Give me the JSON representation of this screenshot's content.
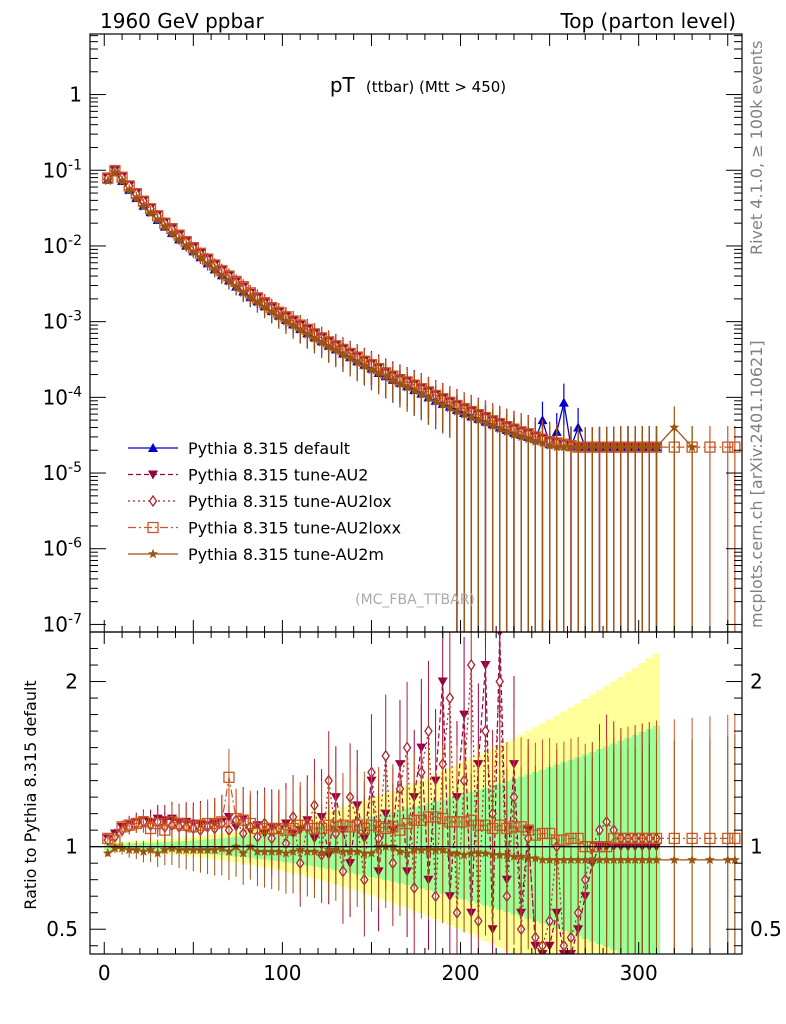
{
  "header": {
    "left": "1960 GeV ppbar",
    "right": "Top (parton level)"
  },
  "side_labels": {
    "rivet": "Rivet 4.1.0, ≥ 100k events",
    "mcplots": "mcplots.cern.ch [arXiv:2401.10621]"
  },
  "chart_data": {
    "type": "line",
    "title_main": "pT",
    "title_sub": "(ttbar) (Mtt > 450)",
    "watermark": "(MC_FBA_TTBAR)",
    "xlabel": "",
    "ylabel_ratio": "Ratio to Pythia 8.315 default",
    "xlim": [
      -8,
      358
    ],
    "ylim_main_log10": [
      -7.1,
      0.8
    ],
    "ylim_ratio": [
      0.35,
      2.3
    ],
    "x_ticks": [
      "0",
      "100",
      "200",
      "300"
    ],
    "y_ticks_main": [
      "1",
      "10^-1",
      "10^-2",
      "10^-3",
      "10^-4",
      "10^-5",
      "10^-6",
      "10^-7"
    ],
    "y_ticks_ratio": [
      "0.5",
      "1",
      "2"
    ],
    "x": [
      2,
      6,
      10,
      14,
      18,
      22,
      26,
      30,
      34,
      38,
      42,
      46,
      50,
      54,
      58,
      62,
      66,
      70,
      74,
      78,
      82,
      86,
      90,
      94,
      98,
      102,
      106,
      110,
      114,
      118,
      122,
      126,
      130,
      134,
      138,
      142,
      146,
      150,
      154,
      158,
      162,
      166,
      170,
      174,
      178,
      182,
      186,
      190,
      194,
      198,
      202,
      206,
      210,
      214,
      218,
      222,
      226,
      230,
      234,
      238,
      242,
      246,
      250,
      254,
      258,
      262,
      266,
      270,
      274,
      278,
      282,
      286,
      290,
      294,
      298,
      302,
      306,
      310,
      320,
      330,
      340,
      350,
      354
    ],
    "series": [
      {
        "name": "Pythia 8.315 default",
        "color": "#0000cc",
        "dash": "",
        "marker": "triangle-up",
        "values": [
          0.075,
          0.095,
          0.072,
          0.055,
          0.043,
          0.034,
          0.028,
          0.022,
          0.018,
          0.0148,
          0.0122,
          0.0101,
          0.0085,
          0.0071,
          0.0059,
          0.0049,
          0.0041,
          0.0035,
          0.0029,
          0.0025,
          0.0021,
          0.00185,
          0.0016,
          0.00138,
          0.0012,
          0.00105,
          0.00092,
          0.0008,
          0.0007,
          0.00062,
          0.00055,
          0.00048,
          0.00043,
          0.00038,
          0.00034,
          0.0003,
          0.00027,
          0.00024,
          0.00021,
          0.00019,
          0.00017,
          0.000155,
          0.00014,
          0.000125,
          0.000112,
          0.0001,
          9e-05,
          8.2e-05,
          7.5e-05,
          6.8e-05,
          6.2e-05,
          5.6e-05,
          5.2e-05,
          4.8e-05,
          4.4e-05,
          4e-05,
          3.7e-05,
          3.4e-05,
          3.2e-05,
          3e-05,
          2.8e-05,
          5e-05,
          2.4e-05,
          3.5e-05,
          8.5e-05,
          2.2e-05,
          4e-05,
          2.2e-05,
          2.2e-05,
          2.2e-05,
          2.2e-05,
          2.2e-05,
          2.2e-05,
          2.2e-05,
          2.2e-05,
          2.2e-05,
          2.2e-05,
          2.2e-05,
          null,
          null,
          null,
          null,
          null
        ]
      },
      {
        "name": "Pythia 8.315 tune-AU2",
        "color": "#990044",
        "dash": "5,3",
        "marker": "triangle-down",
        "values": [
          0.08,
          0.1,
          0.082,
          0.063,
          0.05,
          0.04,
          0.032,
          0.026,
          0.021,
          0.0172,
          0.0141,
          0.0116,
          0.0097,
          0.0081,
          0.0068,
          0.0057,
          0.0048,
          0.0041,
          0.0034,
          0.0029,
          0.0024,
          0.0021,
          0.0018,
          0.00155,
          0.00135,
          0.00118,
          0.00104,
          0.00091,
          0.0008,
          0.0007,
          0.00062,
          0.00055,
          0.00049,
          0.00044,
          0.00039,
          0.00035,
          0.00031,
          0.00028,
          0.00025,
          0.00022,
          0.0002,
          0.00018,
          0.000165,
          0.00015,
          0.000135,
          0.00012,
          0.000108,
          9.8e-05,
          8.8e-05,
          8e-05,
          7.2e-05,
          6.6e-05,
          6e-05,
          5.5e-05,
          5e-05,
          4.6e-05,
          4.2e-05,
          3.9e-05,
          3.6e-05,
          3.4e-05,
          3.1e-05,
          2.9e-05,
          2.7e-05,
          2.6e-05,
          2.4e-05,
          2.3e-05,
          2.2e-05,
          2.2e-05,
          2.2e-05,
          2.2e-05,
          2.2e-05,
          2.2e-05,
          2.2e-05,
          2.2e-05,
          2.2e-05,
          2.2e-05,
          2.2e-05,
          2.2e-05,
          null,
          null,
          null,
          null,
          null
        ]
      },
      {
        "name": "Pythia 8.315 tune-AU2lox",
        "color": "#aa2233",
        "dash": "2,3",
        "marker": "diamond-open",
        "values": [
          0.078,
          0.098,
          0.08,
          0.062,
          0.049,
          0.039,
          0.031,
          0.025,
          0.02,
          0.0167,
          0.0137,
          0.0113,
          0.0094,
          0.0079,
          0.0066,
          0.0056,
          0.0047,
          0.004,
          0.0033,
          0.0028,
          0.0024,
          0.00205,
          0.00176,
          0.00152,
          0.00132,
          0.00115,
          0.00101,
          0.00089,
          0.00078,
          0.00069,
          0.00061,
          0.00054,
          0.00048,
          0.00043,
          0.00038,
          0.00034,
          0.0003,
          0.00027,
          0.00024,
          0.00021,
          0.00019,
          0.00017,
          0.00016,
          0.000145,
          0.00013,
          0.000118,
          0.000106,
          9.6e-05,
          8.6e-05,
          7.8e-05,
          7.1e-05,
          6.5e-05,
          5.9e-05,
          5.4e-05,
          4.9e-05,
          4.5e-05,
          4.1e-05,
          3.8e-05,
          3.5e-05,
          3.3e-05,
          3e-05,
          2.8e-05,
          2.6e-05,
          2.5e-05,
          2.4e-05,
          2.3e-05,
          2.2e-05,
          2.2e-05,
          2.2e-05,
          2.2e-05,
          2.2e-05,
          2.2e-05,
          2.2e-05,
          2.2e-05,
          2.2e-05,
          2.2e-05,
          2.2e-05,
          2.2e-05,
          null,
          null,
          null,
          null,
          null
        ]
      },
      {
        "name": "Pythia 8.315 tune-AU2loxx",
        "color": "#cc5522",
        "dash": "8,3,2,3",
        "marker": "square-open",
        "values": [
          0.079,
          0.099,
          0.081,
          0.062,
          0.049,
          0.039,
          0.031,
          0.025,
          0.02,
          0.0169,
          0.0139,
          0.0114,
          0.0095,
          0.008,
          0.0067,
          0.0056,
          0.0047,
          0.004,
          0.0034,
          0.0029,
          0.0024,
          0.00206,
          0.00178,
          0.00153,
          0.00133,
          0.00116,
          0.00102,
          0.0009,
          0.00079,
          0.00069,
          0.00061,
          0.00054,
          0.00048,
          0.00043,
          0.00038,
          0.00034,
          0.0003,
          0.00027,
          0.00024,
          0.00021,
          0.00019,
          0.00017,
          0.00016,
          0.000145,
          0.00013,
          0.000118,
          0.000106,
          9.6e-05,
          8.6e-05,
          7.8e-05,
          7.1e-05,
          6.5e-05,
          5.9e-05,
          5.4e-05,
          4.9e-05,
          4.5e-05,
          4.1e-05,
          3.8e-05,
          3.5e-05,
          3.3e-05,
          3e-05,
          2.8e-05,
          2.6e-05,
          2.5e-05,
          2.4e-05,
          2.3e-05,
          2.2e-05,
          2.2e-05,
          2.2e-05,
          2.2e-05,
          2.2e-05,
          2.2e-05,
          2.2e-05,
          2.2e-05,
          2.2e-05,
          2.2e-05,
          2.2e-05,
          2.2e-05,
          2.2e-05,
          2.2e-05,
          2.2e-05,
          2.2e-05,
          2.2e-05
        ]
      },
      {
        "name": "Pythia 8.315 tune-AU2m",
        "color": "#995511",
        "dash": "",
        "marker": "star",
        "values": [
          0.072,
          0.094,
          0.071,
          0.054,
          0.042,
          0.033,
          0.027,
          0.022,
          0.018,
          0.0146,
          0.012,
          0.0099,
          0.0083,
          0.007,
          0.0058,
          0.0048,
          0.004,
          0.0034,
          0.0029,
          0.0024,
          0.0021,
          0.0018,
          0.00155,
          0.00134,
          0.00116,
          0.00101,
          0.00089,
          0.00078,
          0.00068,
          0.0006,
          0.00053,
          0.00047,
          0.00042,
          0.00037,
          0.00033,
          0.00029,
          0.00026,
          0.00023,
          0.00021,
          0.00019,
          0.00017,
          0.00015,
          0.000135,
          0.000122,
          0.00011,
          9.8e-05,
          8.8e-05,
          8e-05,
          7.2e-05,
          6.5e-05,
          5.9e-05,
          5.4e-05,
          5e-05,
          4.6e-05,
          4.2e-05,
          3.8e-05,
          3.5e-05,
          3.2e-05,
          3e-05,
          2.8e-05,
          2.6e-05,
          2.5e-05,
          2.3e-05,
          2.2e-05,
          2.2e-05,
          2.2e-05,
          2.2e-05,
          2.2e-05,
          2.2e-05,
          2.2e-05,
          2.2e-05,
          2.2e-05,
          2.2e-05,
          2.2e-05,
          2.2e-05,
          2.2e-05,
          2.2e-05,
          2.2e-05,
          4e-05,
          2.2e-05,
          null,
          null,
          null
        ]
      }
    ],
    "ratio_series": [
      {
        "name": "Pythia 8.315 default",
        "values": [
          1.0,
          1.0,
          1.0,
          1.0,
          1.0,
          1.0,
          1.0,
          1.0,
          1.0,
          1.0,
          1.0,
          1.0,
          1.0,
          1.0,
          1.0,
          1.0,
          1.0,
          1.0,
          1.0,
          1.0,
          1.0,
          1.0,
          1.0,
          1.0,
          1.0,
          1.0,
          1.0,
          1.0,
          1.0,
          1.0,
          1.0,
          1.0,
          1.0,
          1.0,
          1.0,
          1.0,
          1.0,
          1.0,
          1.0,
          1.0,
          1.0,
          1.0,
          1.0,
          1.0,
          1.0,
          1.0,
          1.0,
          1.0,
          1.0,
          1.0,
          1.0,
          1.0,
          1.0,
          1.0,
          1.0,
          1.0,
          1.0,
          1.0,
          1.0,
          1.0,
          1.0,
          1.0,
          1.0,
          1.0,
          1.0,
          1.0,
          1.0,
          1.0,
          1.0,
          1.0,
          1.0,
          1.0,
          1.0,
          1.0,
          1.0,
          1.0,
          1.0,
          1.0,
          null,
          null,
          null,
          null,
          null
        ]
      },
      {
        "name": "Pythia 8.315 tune-AU2",
        "values": [
          1.05,
          1.08,
          1.12,
          1.14,
          1.15,
          1.16,
          1.15,
          1.17,
          1.16,
          1.17,
          1.15,
          1.15,
          1.14,
          1.14,
          1.13,
          1.14,
          1.15,
          1.18,
          1.12,
          1.17,
          1.1,
          1.13,
          1.08,
          1.12,
          1.1,
          1.14,
          1.08,
          1.1,
          1.16,
          1.05,
          1.18,
          0.95,
          1.3,
          1.1,
          0.9,
          1.25,
          1.05,
          1.4,
          0.85,
          1.2,
          1.1,
          1.5,
          0.85,
          1.3,
          1.6,
          0.8,
          1.4,
          2.0,
          0.7,
          1.3,
          1.8,
          0.6,
          1.5,
          2.1,
          0.5,
          2.3,
          0.8,
          1.5,
          0.6,
          1.1,
          0.4,
          0.35,
          0.4,
          0.6,
          0.35,
          0.35,
          0.5,
          0.7,
          0.9,
          1.0,
          1.0,
          1.0,
          1.0,
          1.0,
          1.0,
          1.0,
          1.0,
          1.0,
          null,
          null,
          null,
          null,
          null
        ]
      },
      {
        "name": "Pythia 8.315 tune-AU2lox",
        "values": [
          1.04,
          1.06,
          1.1,
          1.12,
          1.14,
          1.15,
          1.13,
          1.15,
          1.12,
          1.13,
          1.12,
          1.12,
          1.11,
          1.1,
          1.12,
          1.11,
          1.14,
          1.1,
          1.16,
          1.08,
          1.12,
          1.06,
          1.14,
          1.05,
          1.11,
          1.02,
          1.18,
          0.9,
          1.12,
          1.25,
          0.95,
          1.4,
          1.08,
          0.85,
          1.3,
          1.15,
          0.8,
          1.45,
          1.05,
          1.55,
          0.9,
          1.35,
          1.6,
          0.75,
          1.45,
          1.7,
          0.7,
          1.5,
          1.9,
          0.6,
          1.4,
          2.1,
          0.55,
          1.7,
          1.2,
          2.0,
          0.7,
          1.3,
          0.5,
          1.05,
          0.45,
          0.4,
          0.55,
          1.0,
          0.4,
          0.45,
          0.6,
          0.8,
          1.0,
          1.1,
          1.15,
          1.1,
          1.05,
          1.05,
          1.05,
          1.05,
          1.05,
          1.05,
          null,
          null,
          null,
          null,
          null
        ]
      },
      {
        "name": "Pythia 8.315 tune-AU2loxx",
        "values": [
          1.05,
          1.04,
          1.12,
          1.13,
          1.14,
          1.15,
          1.11,
          1.14,
          1.1,
          1.15,
          1.14,
          1.13,
          1.12,
          1.13,
          1.14,
          1.14,
          1.15,
          1.42,
          1.17,
          1.16,
          1.14,
          1.11,
          1.11,
          1.11,
          1.11,
          1.1,
          1.11,
          1.13,
          1.13,
          1.11,
          1.11,
          1.13,
          1.12,
          1.13,
          1.12,
          1.13,
          1.11,
          1.13,
          1.12,
          1.11,
          1.12,
          1.1,
          1.14,
          1.16,
          1.16,
          1.18,
          1.18,
          1.17,
          1.15,
          1.15,
          1.15,
          1.16,
          1.13,
          1.13,
          1.11,
          1.13,
          1.11,
          1.12,
          1.12,
          1.1,
          1.07,
          1.08,
          1.08,
          1.04,
          1.04,
          1.05,
          1.05,
          1.0,
          1.0,
          1.0,
          1.0,
          1.05,
          1.05,
          1.05,
          1.05,
          1.05,
          1.05,
          1.05,
          1.05,
          1.05,
          1.05,
          1.05,
          1.05
        ]
      },
      {
        "name": "Pythia 8.315 tune-AU2m",
        "values": [
          0.96,
          0.99,
          0.99,
          0.98,
          0.98,
          0.97,
          0.98,
          0.96,
          0.98,
          0.99,
          0.98,
          0.98,
          0.98,
          0.98,
          0.98,
          0.98,
          0.99,
          0.97,
          1.0,
          0.96,
          1.0,
          0.97,
          0.97,
          0.97,
          0.97,
          0.96,
          0.97,
          0.98,
          0.97,
          0.97,
          0.96,
          0.98,
          0.98,
          0.97,
          0.97,
          0.97,
          0.96,
          0.96,
          1.0,
          1.0,
          1.0,
          0.97,
          0.96,
          0.98,
          0.98,
          0.98,
          0.98,
          0.98,
          0.96,
          0.96,
          0.95,
          0.96,
          0.96,
          0.96,
          0.95,
          0.95,
          0.95,
          0.94,
          0.94,
          0.93,
          0.93,
          0.92,
          0.92,
          0.92,
          0.92,
          0.92,
          0.92,
          0.92,
          0.92,
          0.92,
          0.92,
          0.92,
          0.92,
          0.92,
          0.92,
          0.92,
          0.92,
          0.92,
          0.92,
          0.92,
          0.92,
          0.92,
          0.92
        ]
      }
    ]
  }
}
